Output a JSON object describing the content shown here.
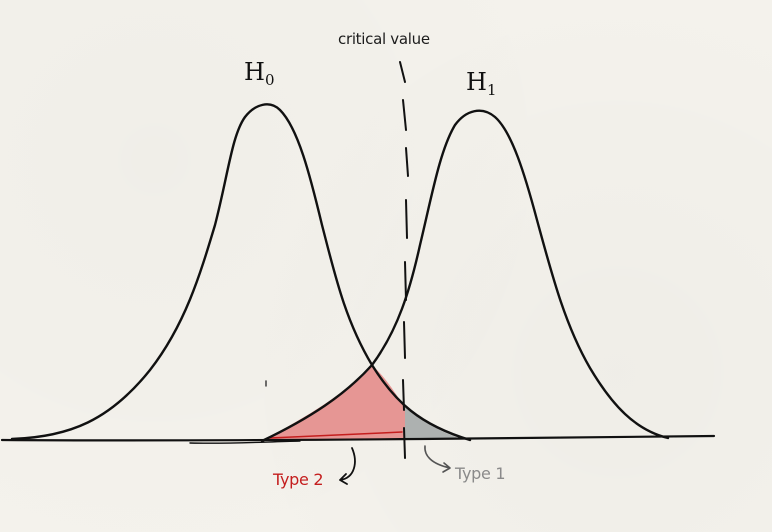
{
  "labels": {
    "critical_value": "critical value",
    "h0_letter": "H",
    "h0_sub": "0",
    "h1_letter": "H",
    "h1_sub": "1",
    "type2": "Type 2",
    "type1": "Type 1"
  },
  "colors": {
    "ink": "#111111",
    "type2_fill": "#e48c8b",
    "type2_text": "#c41e1e",
    "type1_fill": "#a9adad",
    "type1_text": "#8a8a8a",
    "paper": "#f4f2ec"
  }
}
